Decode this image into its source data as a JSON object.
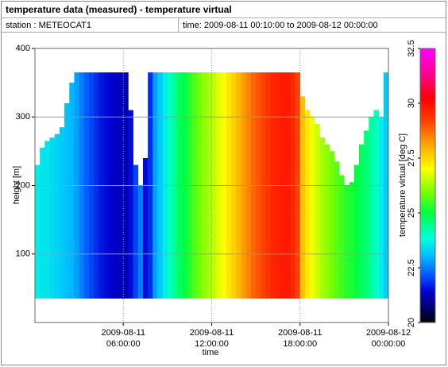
{
  "header": {
    "title": "temperature data (measured) - temperature virtual",
    "station": "station : METEOCAT1",
    "time": "time: 2009-08-11 00:10:00 to 2009-08-12 00:00:00"
  },
  "chart_data": {
    "type": "heatmap",
    "x_label": "time",
    "y_label": "height [m]",
    "x": [
      "2009-08-11 00:00:00",
      "2009-08-11 00:20:00",
      "2009-08-11 00:40:00",
      "2009-08-11 01:00:00",
      "2009-08-11 01:20:00",
      "2009-08-11 01:40:00",
      "2009-08-11 02:00:00",
      "2009-08-11 02:20:00",
      "2009-08-11 02:40:00",
      "2009-08-11 03:00:00",
      "2009-08-11 03:20:00",
      "2009-08-11 03:40:00",
      "2009-08-11 04:00:00",
      "2009-08-11 04:20:00",
      "2009-08-11 04:40:00",
      "2009-08-11 05:00:00",
      "2009-08-11 05:20:00",
      "2009-08-11 05:40:00",
      "2009-08-11 06:00:00",
      "2009-08-11 06:20:00",
      "2009-08-11 06:40:00",
      "2009-08-11 07:00:00",
      "2009-08-11 07:20:00",
      "2009-08-11 07:40:00",
      "2009-08-11 08:00:00",
      "2009-08-11 08:20:00",
      "2009-08-11 08:40:00",
      "2009-08-11 09:00:00",
      "2009-08-11 09:20:00",
      "2009-08-11 09:40:00",
      "2009-08-11 10:00:00",
      "2009-08-11 10:20:00",
      "2009-08-11 10:40:00",
      "2009-08-11 11:00:00",
      "2009-08-11 11:20:00",
      "2009-08-11 11:40:00",
      "2009-08-11 12:00:00",
      "2009-08-11 12:20:00",
      "2009-08-11 12:40:00",
      "2009-08-11 13:00:00",
      "2009-08-11 13:20:00",
      "2009-08-11 13:40:00",
      "2009-08-11 14:00:00",
      "2009-08-11 14:20:00",
      "2009-08-11 14:40:00",
      "2009-08-11 15:00:00",
      "2009-08-11 15:20:00",
      "2009-08-11 15:40:00",
      "2009-08-11 16:00:00",
      "2009-08-11 16:20:00",
      "2009-08-11 16:40:00",
      "2009-08-11 17:00:00",
      "2009-08-11 17:20:00",
      "2009-08-11 17:40:00",
      "2009-08-11 18:00:00",
      "2009-08-11 18:20:00",
      "2009-08-11 18:40:00",
      "2009-08-11 19:00:00",
      "2009-08-11 19:20:00",
      "2009-08-11 19:40:00",
      "2009-08-11 20:00:00",
      "2009-08-11 20:20:00",
      "2009-08-11 20:40:00",
      "2009-08-11 21:00:00",
      "2009-08-11 21:20:00",
      "2009-08-11 21:40:00",
      "2009-08-11 22:00:00",
      "2009-08-11 22:20:00",
      "2009-08-11 22:40:00",
      "2009-08-11 23:00:00",
      "2009-08-11 23:20:00",
      "2009-08-11 23:40:00"
    ],
    "values": [
      23.6,
      23.5,
      23.5,
      23.4,
      23.3,
      23.2,
      23.1,
      23.0,
      22.8,
      22.5,
      22.2,
      22.0,
      21.8,
      21.6,
      21.5,
      21.4,
      21.3,
      21.3,
      21.2,
      21.5,
      22.0,
      22.5,
      21.5,
      21.8,
      22.8,
      23.2,
      23.6,
      24.0,
      24.4,
      24.8,
      25.0,
      25.3,
      25.6,
      25.9,
      26.1,
      26.3,
      26.5,
      26.8,
      27.0,
      27.3,
      27.6,
      27.9,
      28.2,
      28.5,
      28.8,
      29.0,
      29.2,
      29.4,
      29.6,
      29.7,
      29.8,
      29.8,
      29.6,
      29.2,
      27.8,
      27.3,
      26.9,
      26.6,
      26.3,
      26.1,
      25.9,
      25.7,
      25.5,
      25.3,
      25.2,
      25.0,
      24.8,
      24.6,
      24.3,
      24.0,
      23.6,
      23.2
    ],
    "tops": [
      230,
      255,
      265,
      270,
      275,
      285,
      320,
      350,
      365,
      365,
      365,
      365,
      365,
      365,
      365,
      365,
      365,
      365,
      365,
      310,
      230,
      200,
      240,
      365,
      365,
      365,
      365,
      365,
      365,
      365,
      365,
      365,
      365,
      365,
      365,
      365,
      365,
      365,
      365,
      365,
      365,
      365,
      365,
      365,
      365,
      365,
      365,
      365,
      365,
      365,
      365,
      365,
      365,
      365,
      330,
      310,
      300,
      290,
      270,
      260,
      250,
      235,
      215,
      200,
      205,
      230,
      260,
      280,
      300,
      310,
      300,
      365
    ],
    "base_height": 35,
    "xlim": [
      "2009-08-11 00:00:00",
      "2009-08-12 00:00:00"
    ],
    "xticks": [
      "2009-08-11 06:00:00",
      "2009-08-11 12:00:00",
      "2009-08-11 18:00:00",
      "2009-08-12 00:00:00"
    ],
    "ylim": [
      0,
      400
    ],
    "yticks": [
      100,
      200,
      300,
      400
    ],
    "grid": true,
    "colorbar": {
      "label": "temperature virtual [deg C]",
      "lim": [
        20,
        32.5
      ],
      "ticks": [
        20,
        22.5,
        25,
        27.5,
        30,
        32.5
      ]
    },
    "colormap": [
      {
        "value": 20,
        "color": "#000000"
      },
      {
        "value": 20.7,
        "color": "#000070"
      },
      {
        "value": 21.4,
        "color": "#0000d0"
      },
      {
        "value": 22.1,
        "color": "#0050ff"
      },
      {
        "value": 23,
        "color": "#00b8ff"
      },
      {
        "value": 23.8,
        "color": "#00ffe0"
      },
      {
        "value": 25,
        "color": "#00ff40"
      },
      {
        "value": 26,
        "color": "#80ff00"
      },
      {
        "value": 27,
        "color": "#ffff00"
      },
      {
        "value": 28,
        "color": "#ffb000"
      },
      {
        "value": 29.2,
        "color": "#ff4000"
      },
      {
        "value": 30.2,
        "color": "#ff0000"
      },
      {
        "value": 31.2,
        "color": "#ff0080"
      },
      {
        "value": 32.5,
        "color": "#ff00ff"
      }
    ]
  }
}
